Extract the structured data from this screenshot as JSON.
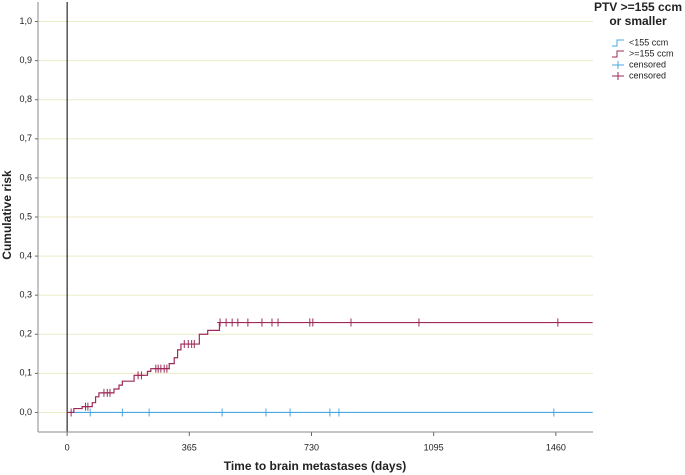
{
  "chart_data": {
    "type": "line",
    "step": "post",
    "x_label": "Time to brain metastases (days)",
    "y_label": "Cumulative risk",
    "legend_title": [
      "PTV >=155 ccm",
      "or smaller"
    ],
    "xlim": [
      -87,
      1571
    ],
    "ylim": [
      -0.05,
      1.05
    ],
    "xticks": [
      0,
      365,
      730,
      1095,
      1460
    ],
    "yticks": [
      {
        "value": 0,
        "label": "0,0"
      },
      {
        "value": 0.1,
        "label": "0,1"
      },
      {
        "value": 0.2,
        "label": "0,2"
      },
      {
        "value": 0.3,
        "label": "0,3"
      },
      {
        "value": 0.4,
        "label": "0,4"
      },
      {
        "value": 0.5,
        "label": "0,5"
      },
      {
        "value": 0.6,
        "label": "0,6"
      },
      {
        "value": 0.7,
        "label": "0,7"
      },
      {
        "value": 0.8,
        "label": "0,8"
      },
      {
        "value": 0.9,
        "label": "0,9"
      },
      {
        "value": 1,
        "label": "1,0"
      }
    ],
    "grid": true,
    "series": [
      {
        "name": "<155 ccm",
        "color": "#4aa8e0",
        "marker": "step",
        "x": [
          0,
          1570
        ],
        "values": [
          0,
          0
        ]
      },
      {
        "name": ">=155 ccm",
        "color": "#9e2a5a",
        "marker": "step",
        "x": [
          0,
          20,
          45,
          75,
          85,
          95,
          140,
          155,
          165,
          200,
          240,
          250,
          305,
          320,
          330,
          340,
          395,
          420,
          455,
          1570
        ],
        "values": [
          0,
          0.01,
          0.015,
          0.025,
          0.04,
          0.05,
          0.06,
          0.07,
          0.08,
          0.095,
          0.105,
          0.112,
          0.125,
          0.14,
          0.16,
          0.175,
          0.2,
          0.21,
          0.23,
          0.23
        ]
      },
      {
        "name": "censored",
        "color": "#4aa8e0",
        "marker": "plus",
        "x": [
          69,
          165,
          245,
          463,
          594,
          666,
          785,
          812,
          1454
        ],
        "values": [
          0,
          0,
          0,
          0,
          0,
          0,
          0,
          0,
          0
        ]
      },
      {
        "name": "censored",
        "color": "#9e2a5a",
        "marker": "plus",
        "x": [
          12,
          55,
          62,
          110,
          120,
          128,
          212,
          222,
          265,
          272,
          280,
          290,
          298,
          350,
          362,
          372,
          380,
          457,
          475,
          493,
          510,
          540,
          582,
          612,
          630,
          725,
          734,
          848,
          1051,
          1466
        ],
        "values": [
          0,
          0.015,
          0.015,
          0.05,
          0.05,
          0.05,
          0.095,
          0.095,
          0.112,
          0.112,
          0.112,
          0.112,
          0.112,
          0.175,
          0.175,
          0.175,
          0.175,
          0.23,
          0.23,
          0.23,
          0.23,
          0.23,
          0.23,
          0.23,
          0.23,
          0.23,
          0.23,
          0.23,
          0.23,
          0.23
        ]
      }
    ]
  }
}
